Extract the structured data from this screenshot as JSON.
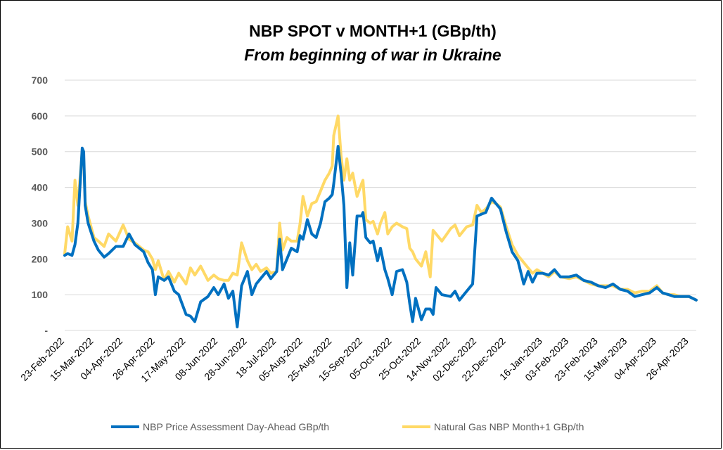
{
  "chart_data": {
    "type": "line",
    "title": "NBP SPOT v MONTH+1 (GBp/th)",
    "subtitle": "From beginning of war in Ukraine",
    "xlabel": "",
    "ylabel": "",
    "ylim": [
      0,
      700
    ],
    "y_ticks": [
      "-",
      "100",
      "200",
      "300",
      "400",
      "500",
      "600",
      "700"
    ],
    "y_tick_values": [
      0,
      100,
      200,
      300,
      400,
      500,
      600,
      700
    ],
    "x_range": [
      "2022-02-23",
      "2023-05-01"
    ],
    "x_tick_labels": [
      "23-Feb-2022",
      "15-Mar-2022",
      "04-Apr-2022",
      "26-Apr-2022",
      "17-May-2022",
      "08-Jun-2022",
      "28-Jun-2022",
      "18-Jul-2022",
      "05-Aug-2022",
      "25-Aug-2022",
      "15-Sep-2022",
      "05-Oct-2022",
      "25-Oct-2022",
      "14-Nov-2022",
      "02-Dec-2022",
      "22-Dec-2022",
      "16-Jan-2023",
      "03-Feb-2023",
      "23-Feb-2023",
      "15-Mar-2023",
      "04-Apr-2023",
      "26-Apr-2023"
    ],
    "x_tick_dates": [
      "2022-02-23",
      "2022-03-15",
      "2022-04-04",
      "2022-04-26",
      "2022-05-17",
      "2022-06-08",
      "2022-06-28",
      "2022-07-18",
      "2022-08-05",
      "2022-08-25",
      "2022-09-15",
      "2022-10-05",
      "2022-10-25",
      "2022-11-14",
      "2022-12-02",
      "2022-12-22",
      "2023-01-16",
      "2023-02-03",
      "2023-02-23",
      "2023-03-15",
      "2023-04-04",
      "2023-04-26"
    ],
    "grid": true,
    "legend_position": "bottom",
    "series": [
      {
        "name": "NBP Price Assessment Day-Ahead GBp/th",
        "color": "#0070c0",
        "points": [
          [
            "2022-02-23",
            210
          ],
          [
            "2022-02-25",
            215
          ],
          [
            "2022-02-28",
            210
          ],
          [
            "2022-03-02",
            240
          ],
          [
            "2022-03-04",
            300
          ],
          [
            "2022-03-07",
            510
          ],
          [
            "2022-03-08",
            500
          ],
          [
            "2022-03-09",
            350
          ],
          [
            "2022-03-11",
            300
          ],
          [
            "2022-03-15",
            250
          ],
          [
            "2022-03-18",
            225
          ],
          [
            "2022-03-22",
            205
          ],
          [
            "2022-03-25",
            215
          ],
          [
            "2022-03-30",
            235
          ],
          [
            "2022-04-04",
            235
          ],
          [
            "2022-04-08",
            270
          ],
          [
            "2022-04-12",
            240
          ],
          [
            "2022-04-18",
            220
          ],
          [
            "2022-04-21",
            190
          ],
          [
            "2022-04-24",
            170
          ],
          [
            "2022-04-26",
            100
          ],
          [
            "2022-04-28",
            150
          ],
          [
            "2022-05-02",
            140
          ],
          [
            "2022-05-05",
            150
          ],
          [
            "2022-05-09",
            110
          ],
          [
            "2022-05-12",
            100
          ],
          [
            "2022-05-17",
            45
          ],
          [
            "2022-05-20",
            40
          ],
          [
            "2022-05-23",
            25
          ],
          [
            "2022-05-27",
            80
          ],
          [
            "2022-06-01",
            95
          ],
          [
            "2022-06-05",
            120
          ],
          [
            "2022-06-08",
            100
          ],
          [
            "2022-06-12",
            130
          ],
          [
            "2022-06-15",
            90
          ],
          [
            "2022-06-18",
            110
          ],
          [
            "2022-06-21",
            10
          ],
          [
            "2022-06-24",
            125
          ],
          [
            "2022-06-28",
            165
          ],
          [
            "2022-07-01",
            100
          ],
          [
            "2022-07-04",
            130
          ],
          [
            "2022-07-07",
            145
          ],
          [
            "2022-07-11",
            165
          ],
          [
            "2022-07-14",
            145
          ],
          [
            "2022-07-18",
            165
          ],
          [
            "2022-07-20",
            255
          ],
          [
            "2022-07-22",
            170
          ],
          [
            "2022-07-25",
            200
          ],
          [
            "2022-07-28",
            230
          ],
          [
            "2022-08-01",
            220
          ],
          [
            "2022-08-03",
            265
          ],
          [
            "2022-08-05",
            255
          ],
          [
            "2022-08-08",
            310
          ],
          [
            "2022-08-11",
            270
          ],
          [
            "2022-08-14",
            260
          ],
          [
            "2022-08-17",
            300
          ],
          [
            "2022-08-20",
            360
          ],
          [
            "2022-08-23",
            370
          ],
          [
            "2022-08-25",
            380
          ],
          [
            "2022-08-26",
            410
          ],
          [
            "2022-08-29",
            515
          ],
          [
            "2022-08-31",
            440
          ],
          [
            "2022-09-02",
            350
          ],
          [
            "2022-09-04",
            120
          ],
          [
            "2022-09-06",
            245
          ],
          [
            "2022-09-08",
            155
          ],
          [
            "2022-09-11",
            320
          ],
          [
            "2022-09-14",
            320
          ],
          [
            "2022-09-15",
            330
          ],
          [
            "2022-09-17",
            260
          ],
          [
            "2022-09-20",
            245
          ],
          [
            "2022-09-22",
            250
          ],
          [
            "2022-09-25",
            195
          ],
          [
            "2022-09-27",
            230
          ],
          [
            "2022-09-30",
            170
          ],
          [
            "2022-10-02",
            145
          ],
          [
            "2022-10-05",
            100
          ],
          [
            "2022-10-08",
            165
          ],
          [
            "2022-10-12",
            170
          ],
          [
            "2022-10-15",
            135
          ],
          [
            "2022-10-17",
            75
          ],
          [
            "2022-10-19",
            25
          ],
          [
            "2022-10-21",
            90
          ],
          [
            "2022-10-25",
            30
          ],
          [
            "2022-10-28",
            60
          ],
          [
            "2022-10-31",
            60
          ],
          [
            "2022-11-02",
            45
          ],
          [
            "2022-11-04",
            120
          ],
          [
            "2022-11-08",
            100
          ],
          [
            "2022-11-14",
            95
          ],
          [
            "2022-11-17",
            110
          ],
          [
            "2022-11-20",
            85
          ],
          [
            "2022-11-25",
            110
          ],
          [
            "2022-11-29",
            130
          ],
          [
            "2022-12-02",
            320
          ],
          [
            "2022-12-05",
            325
          ],
          [
            "2022-12-08",
            330
          ],
          [
            "2022-12-12",
            370
          ],
          [
            "2022-12-15",
            355
          ],
          [
            "2022-12-18",
            340
          ],
          [
            "2022-12-22",
            275
          ],
          [
            "2022-12-26",
            220
          ],
          [
            "2022-12-30",
            195
          ],
          [
            "2023-01-03",
            130
          ],
          [
            "2023-01-06",
            165
          ],
          [
            "2023-01-09",
            135
          ],
          [
            "2023-01-12",
            160
          ],
          [
            "2023-01-16",
            160
          ],
          [
            "2023-01-20",
            155
          ],
          [
            "2023-01-24",
            170
          ],
          [
            "2023-01-28",
            150
          ],
          [
            "2023-02-03",
            150
          ],
          [
            "2023-02-08",
            155
          ],
          [
            "2023-02-13",
            140
          ],
          [
            "2023-02-18",
            135
          ],
          [
            "2023-02-23",
            125
          ],
          [
            "2023-02-28",
            120
          ],
          [
            "2023-03-05",
            130
          ],
          [
            "2023-03-10",
            115
          ],
          [
            "2023-03-15",
            110
          ],
          [
            "2023-03-20",
            95
          ],
          [
            "2023-03-25",
            100
          ],
          [
            "2023-03-30",
            105
          ],
          [
            "2023-04-04",
            120
          ],
          [
            "2023-04-08",
            105
          ],
          [
            "2023-04-12",
            100
          ],
          [
            "2023-04-16",
            95
          ],
          [
            "2023-04-20",
            95
          ],
          [
            "2023-04-26",
            95
          ],
          [
            "2023-05-01",
            85
          ]
        ]
      },
      {
        "name": "Natural Gas NBP Month+1 GBp/th",
        "color": "#ffd966",
        "points": [
          [
            "2022-02-23",
            215
          ],
          [
            "2022-02-25",
            290
          ],
          [
            "2022-02-28",
            250
          ],
          [
            "2022-03-02",
            420
          ],
          [
            "2022-03-04",
            350
          ],
          [
            "2022-03-07",
            500
          ],
          [
            "2022-03-08",
            480
          ],
          [
            "2022-03-09",
            360
          ],
          [
            "2022-03-11",
            320
          ],
          [
            "2022-03-15",
            260
          ],
          [
            "2022-03-18",
            250
          ],
          [
            "2022-03-22",
            235
          ],
          [
            "2022-03-25",
            270
          ],
          [
            "2022-03-30",
            250
          ],
          [
            "2022-04-04",
            295
          ],
          [
            "2022-04-08",
            255
          ],
          [
            "2022-04-12",
            245
          ],
          [
            "2022-04-18",
            225
          ],
          [
            "2022-04-21",
            220
          ],
          [
            "2022-04-24",
            200
          ],
          [
            "2022-04-26",
            170
          ],
          [
            "2022-04-28",
            195
          ],
          [
            "2022-05-02",
            140
          ],
          [
            "2022-05-05",
            165
          ],
          [
            "2022-05-09",
            135
          ],
          [
            "2022-05-12",
            160
          ],
          [
            "2022-05-17",
            130
          ],
          [
            "2022-05-20",
            175
          ],
          [
            "2022-05-23",
            155
          ],
          [
            "2022-05-27",
            180
          ],
          [
            "2022-06-01",
            140
          ],
          [
            "2022-06-05",
            155
          ],
          [
            "2022-06-08",
            145
          ],
          [
            "2022-06-12",
            140
          ],
          [
            "2022-06-15",
            140
          ],
          [
            "2022-06-18",
            160
          ],
          [
            "2022-06-21",
            155
          ],
          [
            "2022-06-24",
            245
          ],
          [
            "2022-06-28",
            195
          ],
          [
            "2022-07-01",
            170
          ],
          [
            "2022-07-04",
            185
          ],
          [
            "2022-07-07",
            165
          ],
          [
            "2022-07-11",
            175
          ],
          [
            "2022-07-14",
            160
          ],
          [
            "2022-07-18",
            165
          ],
          [
            "2022-07-20",
            300
          ],
          [
            "2022-07-22",
            225
          ],
          [
            "2022-07-25",
            260
          ],
          [
            "2022-07-28",
            250
          ],
          [
            "2022-08-01",
            250
          ],
          [
            "2022-08-03",
            300
          ],
          [
            "2022-08-05",
            375
          ],
          [
            "2022-08-08",
            320
          ],
          [
            "2022-08-11",
            355
          ],
          [
            "2022-08-14",
            360
          ],
          [
            "2022-08-17",
            390
          ],
          [
            "2022-08-20",
            420
          ],
          [
            "2022-08-23",
            440
          ],
          [
            "2022-08-25",
            460
          ],
          [
            "2022-08-26",
            545
          ],
          [
            "2022-08-29",
            600
          ],
          [
            "2022-08-31",
            490
          ],
          [
            "2022-09-02",
            420
          ],
          [
            "2022-09-04",
            480
          ],
          [
            "2022-09-06",
            420
          ],
          [
            "2022-09-08",
            440
          ],
          [
            "2022-09-11",
            375
          ],
          [
            "2022-09-14",
            410
          ],
          [
            "2022-09-15",
            420
          ],
          [
            "2022-09-17",
            310
          ],
          [
            "2022-09-20",
            300
          ],
          [
            "2022-09-22",
            305
          ],
          [
            "2022-09-25",
            270
          ],
          [
            "2022-09-27",
            300
          ],
          [
            "2022-09-30",
            330
          ],
          [
            "2022-10-02",
            270
          ],
          [
            "2022-10-05",
            290
          ],
          [
            "2022-10-08",
            300
          ],
          [
            "2022-10-12",
            290
          ],
          [
            "2022-10-15",
            285
          ],
          [
            "2022-10-17",
            230
          ],
          [
            "2022-10-19",
            220
          ],
          [
            "2022-10-21",
            200
          ],
          [
            "2022-10-25",
            180
          ],
          [
            "2022-10-28",
            220
          ],
          [
            "2022-10-31",
            150
          ],
          [
            "2022-11-02",
            280
          ],
          [
            "2022-11-04",
            270
          ],
          [
            "2022-11-08",
            250
          ],
          [
            "2022-11-14",
            285
          ],
          [
            "2022-11-17",
            295
          ],
          [
            "2022-11-20",
            265
          ],
          [
            "2022-11-25",
            290
          ],
          [
            "2022-11-29",
            295
          ],
          [
            "2022-12-02",
            350
          ],
          [
            "2022-12-05",
            330
          ],
          [
            "2022-12-08",
            340
          ],
          [
            "2022-12-12",
            360
          ],
          [
            "2022-12-15",
            355
          ],
          [
            "2022-12-18",
            345
          ],
          [
            "2022-12-22",
            290
          ],
          [
            "2022-12-26",
            240
          ],
          [
            "2022-12-30",
            210
          ],
          [
            "2023-01-03",
            190
          ],
          [
            "2023-01-06",
            175
          ],
          [
            "2023-01-09",
            160
          ],
          [
            "2023-01-12",
            170
          ],
          [
            "2023-01-16",
            160
          ],
          [
            "2023-01-20",
            150
          ],
          [
            "2023-01-24",
            165
          ],
          [
            "2023-01-28",
            150
          ],
          [
            "2023-02-03",
            145
          ],
          [
            "2023-02-08",
            150
          ],
          [
            "2023-02-13",
            140
          ],
          [
            "2023-02-18",
            130
          ],
          [
            "2023-02-23",
            125
          ],
          [
            "2023-02-28",
            125
          ],
          [
            "2023-03-05",
            125
          ],
          [
            "2023-03-10",
            115
          ],
          [
            "2023-03-15",
            115
          ],
          [
            "2023-03-20",
            105
          ],
          [
            "2023-03-25",
            110
          ],
          [
            "2023-03-30",
            110
          ],
          [
            "2023-04-04",
            125
          ],
          [
            "2023-04-08",
            105
          ],
          [
            "2023-04-12",
            100
          ],
          [
            "2023-04-16",
            100
          ],
          [
            "2023-04-20",
            95
          ],
          [
            "2023-04-26",
            95
          ],
          [
            "2023-05-01",
            85
          ]
        ]
      }
    ]
  }
}
